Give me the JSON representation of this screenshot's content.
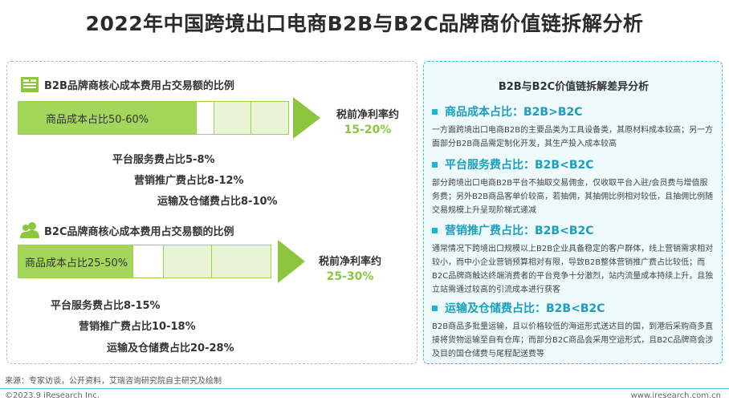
{
  "title": "2022年中国跨境出口电商B2B与B2C品牌商价值链拆解分析",
  "b2b": {
    "heading": "B2B品牌商核心成本费用占交易额的比例",
    "main_segment": "商品成本占比50-60%",
    "profit_label": "税前净利率约",
    "profit_value": "15-20%",
    "fees": [
      "平台服务费占比5-8%",
      "营销推广费占比8-12%",
      "运输及仓储费占比8-10%"
    ]
  },
  "b2c": {
    "heading": "B2C品牌商核心成本费用占交易额的比例",
    "main_segment": "商品成本占比25-50%",
    "profit_label": "税前净利率约",
    "profit_value": "25-30%",
    "fees": [
      "平台服务费占比8-15%",
      "营销推广费占比10-18%",
      "运输及仓储费占比20-28%"
    ]
  },
  "right_panel": {
    "title": "B2B与B2C价值链拆解差异分析",
    "items": [
      {
        "head": "商品成本占比：B2B>B2C",
        "body": "一方面跨境出口电商B2B的主要品类为工具设备类，其原材料成本较高；另一方面部分B2B商品需定制化开发，其生产投入成本较高"
      },
      {
        "head": "平台服务费占比：B2B<B2C",
        "body": "部分跨境出口电商B2B平台不抽取交易佣金，仅收取平台入驻/会员费与增值服务费；另外B2B商品客单价较高，若抽佣，其抽佣比例相对较低，且抽佣比例随交易规模上升呈现阶梯式递减"
      },
      {
        "head": "营销推广费占比：B2B<B2C",
        "body": "通常情况下跨境出口规模以上B2B企业具备稳定的客户群体，线上营销需求相对较小，而中小企业营销预算相对有限，导致B2B整体营销推广费占比较低；而B2C品牌商触达终端消费者的平台竞争十分激烈，站内流量成本持续上升，且独立站需通过较高的引流成本进行获客"
      },
      {
        "head": "运输及仓储费占比：B2B<B2C",
        "body": "B2B商品多批量运输，且以价格较低的海运形式送达目的国，到港后采购商多直接将货物运输至自有仓库；而部分B2C商品会采用空运形式，且B2C品牌商会涉及目的国仓储费与尾程配送费等"
      }
    ]
  },
  "source": "来源：专家访谈，公开资料，艾瑞咨询研究院自主研究及绘制",
  "copyright": "©2023.9 iResearch Inc.",
  "website": "www.iresearch.com.cn",
  "colors": {
    "accent_green": "#8cc63f",
    "accent_blue": "#1fb3d6"
  }
}
